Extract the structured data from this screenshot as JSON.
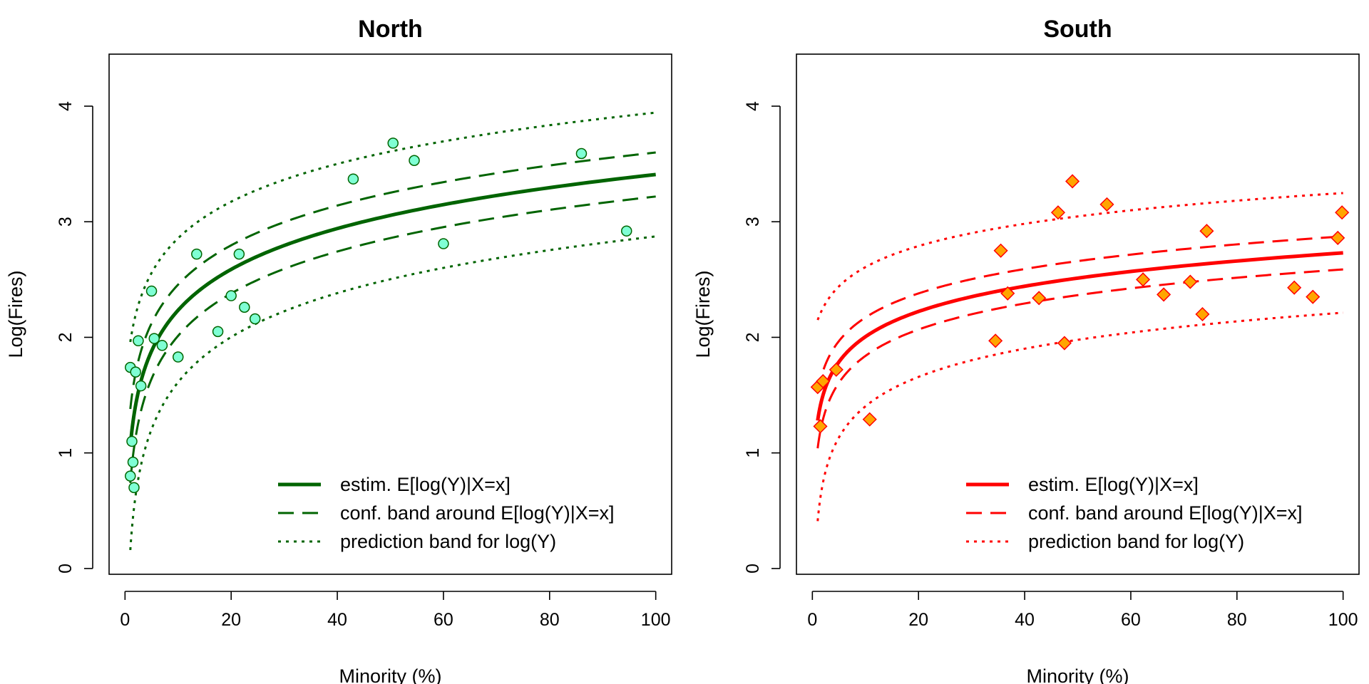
{
  "chart_data": [
    {
      "type": "scatter",
      "title": "North",
      "xlabel": "Minority (%)",
      "ylabel": "Log(Fires)",
      "xlim": [
        0,
        100
      ],
      "ylim": [
        0,
        4.4
      ],
      "xticks": [
        0,
        20,
        40,
        60,
        80,
        100
      ],
      "yticks": [
        0,
        1,
        2,
        3,
        4
      ],
      "colors": {
        "line": "#006400",
        "marker_fill": "#7FFFD4",
        "marker_edge": "#006400"
      },
      "marker": "circle",
      "grid": false,
      "legend_position": "bottom-right",
      "points": [
        {
          "x": 1.0,
          "y": 1.74
        },
        {
          "x": 1.0,
          "y": 0.8
        },
        {
          "x": 1.3,
          "y": 1.1
        },
        {
          "x": 1.5,
          "y": 0.92
        },
        {
          "x": 1.7,
          "y": 0.7
        },
        {
          "x": 2.0,
          "y": 1.7
        },
        {
          "x": 2.5,
          "y": 1.97
        },
        {
          "x": 3.0,
          "y": 1.58
        },
        {
          "x": 5.0,
          "y": 2.4
        },
        {
          "x": 5.5,
          "y": 1.99
        },
        {
          "x": 7.0,
          "y": 1.93
        },
        {
          "x": 10.0,
          "y": 1.83
        },
        {
          "x": 13.5,
          "y": 2.72
        },
        {
          "x": 17.5,
          "y": 2.05
        },
        {
          "x": 20.0,
          "y": 2.36
        },
        {
          "x": 21.5,
          "y": 2.72
        },
        {
          "x": 22.5,
          "y": 2.26
        },
        {
          "x": 24.5,
          "y": 2.16
        },
        {
          "x": 43.0,
          "y": 3.37
        },
        {
          "x": 50.5,
          "y": 3.68
        },
        {
          "x": 54.5,
          "y": 3.53
        },
        {
          "x": 60.0,
          "y": 2.81
        },
        {
          "x": 86.0,
          "y": 3.59
        },
        {
          "x": 94.5,
          "y": 2.92
        }
      ],
      "fit": {
        "intercept": 1.06,
        "slope_log_x": 0.51,
        "conf_offset": 0.32,
        "pred_offset": 0.9,
        "x_start": 1.0
      },
      "series": [
        {
          "name": "estim. E[log(Y)|X=x]",
          "style": "solid"
        },
        {
          "name": "conf. band around E[log(Y)|X=x]",
          "style": "dashed"
        },
        {
          "name": "prediction band for log(Y)",
          "style": "dotted"
        }
      ]
    },
    {
      "type": "scatter",
      "title": "South",
      "xlabel": "Minority (%)",
      "ylabel": "Log(Fires)",
      "xlim": [
        0,
        100
      ],
      "ylim": [
        0,
        4.4
      ],
      "xticks": [
        0,
        20,
        40,
        60,
        80,
        100
      ],
      "yticks": [
        0,
        1,
        2,
        3,
        4
      ],
      "colors": {
        "line": "#FF0000",
        "marker_fill": "#FFA500",
        "marker_edge": "#FF0000"
      },
      "marker": "diamond",
      "grid": false,
      "legend_position": "bottom-right",
      "points": [
        {
          "x": 1.0,
          "y": 1.57
        },
        {
          "x": 1.5,
          "y": 1.23
        },
        {
          "x": 2.0,
          "y": 1.62
        },
        {
          "x": 4.5,
          "y": 1.72
        },
        {
          "x": 10.8,
          "y": 1.29
        },
        {
          "x": 34.5,
          "y": 1.97
        },
        {
          "x": 35.5,
          "y": 2.75
        },
        {
          "x": 36.8,
          "y": 2.38
        },
        {
          "x": 42.7,
          "y": 2.34
        },
        {
          "x": 46.3,
          "y": 3.08
        },
        {
          "x": 47.5,
          "y": 1.95
        },
        {
          "x": 49.0,
          "y": 3.35
        },
        {
          "x": 55.5,
          "y": 3.15
        },
        {
          "x": 62.3,
          "y": 2.5
        },
        {
          "x": 66.2,
          "y": 2.37
        },
        {
          "x": 71.2,
          "y": 2.48
        },
        {
          "x": 73.5,
          "y": 2.2
        },
        {
          "x": 74.3,
          "y": 2.92
        },
        {
          "x": 90.8,
          "y": 2.43
        },
        {
          "x": 94.3,
          "y": 2.35
        },
        {
          "x": 99.0,
          "y": 2.86
        },
        {
          "x": 99.8,
          "y": 3.08
        }
      ],
      "fit": {
        "intercept": 1.28,
        "slope_log_x": 0.315,
        "conf_offset": 0.24,
        "pred_offset": 0.87,
        "x_start": 1.0
      },
      "series": [
        {
          "name": "estim. E[log(Y)|X=x]",
          "style": "solid"
        },
        {
          "name": "conf. band around E[log(Y)|X=x]",
          "style": "dashed"
        },
        {
          "name": "prediction band for log(Y)",
          "style": "dotted"
        }
      ]
    }
  ]
}
